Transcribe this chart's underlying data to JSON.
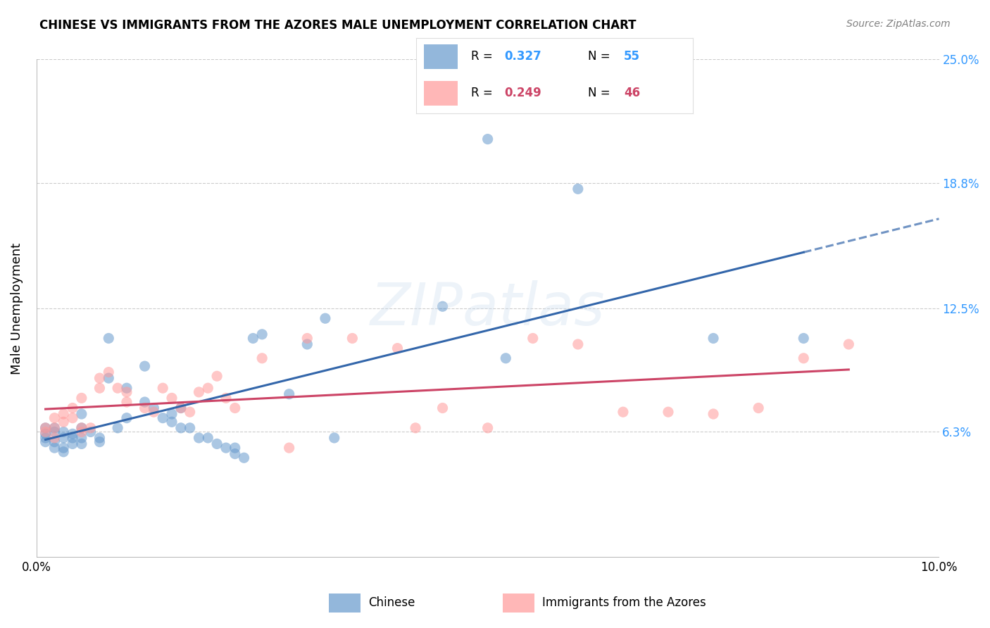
{
  "title": "CHINESE VS IMMIGRANTS FROM THE AZORES MALE UNEMPLOYMENT CORRELATION CHART",
  "source": "Source: ZipAtlas.com",
  "ylabel": "Male Unemployment",
  "xlabel": "",
  "xlim": [
    0.0,
    0.1
  ],
  "ylim": [
    0.0,
    0.25
  ],
  "ytick_labels": [
    "6.3%",
    "12.5%",
    "18.8%",
    "25.0%"
  ],
  "ytick_values": [
    0.063,
    0.125,
    0.188,
    0.25
  ],
  "xtick_labels": [
    "0.0%",
    "10.0%"
  ],
  "xtick_values": [
    0.0,
    0.1
  ],
  "grid_color": "#cccccc",
  "background_color": "#ffffff",
  "chinese_color": "#6699cc",
  "azores_color": "#ff9999",
  "chinese_R": 0.327,
  "chinese_N": 55,
  "azores_R": 0.249,
  "azores_N": 46,
  "watermark": "ZIPatlas",
  "chinese_scatter_x": [
    0.001,
    0.001,
    0.001,
    0.001,
    0.002,
    0.002,
    0.002,
    0.002,
    0.003,
    0.003,
    0.003,
    0.003,
    0.004,
    0.004,
    0.004,
    0.005,
    0.005,
    0.005,
    0.005,
    0.006,
    0.007,
    0.007,
    0.008,
    0.008,
    0.009,
    0.01,
    0.01,
    0.012,
    0.012,
    0.013,
    0.014,
    0.015,
    0.015,
    0.016,
    0.016,
    0.017,
    0.018,
    0.019,
    0.02,
    0.021,
    0.022,
    0.022,
    0.023,
    0.024,
    0.025,
    0.028,
    0.03,
    0.032,
    0.033,
    0.045,
    0.05,
    0.052,
    0.06,
    0.075,
    0.085
  ],
  "chinese_scatter_y": [
    0.065,
    0.062,
    0.058,
    0.06,
    0.065,
    0.063,
    0.058,
    0.055,
    0.063,
    0.06,
    0.055,
    0.053,
    0.062,
    0.06,
    0.057,
    0.072,
    0.065,
    0.06,
    0.057,
    0.063,
    0.06,
    0.058,
    0.11,
    0.09,
    0.065,
    0.085,
    0.07,
    0.096,
    0.078,
    0.075,
    0.07,
    0.072,
    0.068,
    0.075,
    0.065,
    0.065,
    0.06,
    0.06,
    0.057,
    0.055,
    0.055,
    0.052,
    0.05,
    0.11,
    0.112,
    0.082,
    0.107,
    0.12,
    0.06,
    0.126,
    0.21,
    0.1,
    0.185,
    0.11,
    0.11
  ],
  "azores_scatter_x": [
    0.001,
    0.001,
    0.002,
    0.002,
    0.002,
    0.003,
    0.003,
    0.004,
    0.004,
    0.005,
    0.005,
    0.005,
    0.006,
    0.007,
    0.007,
    0.008,
    0.009,
    0.01,
    0.01,
    0.012,
    0.013,
    0.014,
    0.015,
    0.016,
    0.017,
    0.018,
    0.019,
    0.02,
    0.021,
    0.022,
    0.025,
    0.028,
    0.03,
    0.035,
    0.04,
    0.042,
    0.045,
    0.05,
    0.055,
    0.06,
    0.065,
    0.07,
    0.075,
    0.08,
    0.085,
    0.09
  ],
  "azores_scatter_y": [
    0.065,
    0.063,
    0.07,
    0.065,
    0.06,
    0.072,
    0.068,
    0.075,
    0.07,
    0.065,
    0.08,
    0.063,
    0.065,
    0.09,
    0.085,
    0.093,
    0.085,
    0.083,
    0.078,
    0.075,
    0.073,
    0.085,
    0.08,
    0.075,
    0.073,
    0.083,
    0.085,
    0.091,
    0.08,
    0.075,
    0.1,
    0.055,
    0.11,
    0.11,
    0.105,
    0.065,
    0.075,
    0.065,
    0.11,
    0.107,
    0.073,
    0.073,
    0.072,
    0.075,
    0.1,
    0.107
  ]
}
